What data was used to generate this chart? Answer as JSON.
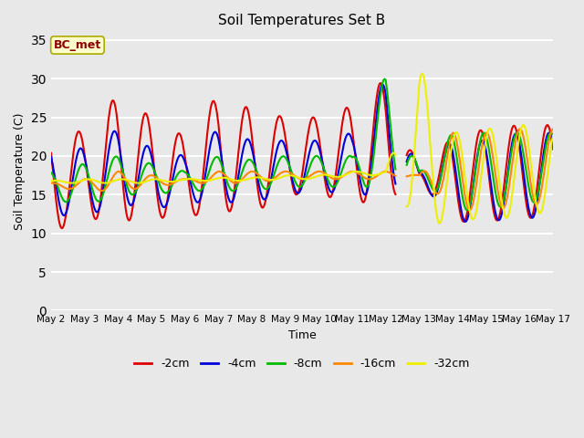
{
  "title": "Soil Temperatures Set B",
  "xlabel": "Time",
  "ylabel": "Soil Temperature (C)",
  "annotation": "BC_met",
  "ylim": [
    0,
    36
  ],
  "yticks": [
    0,
    5,
    10,
    15,
    20,
    25,
    30,
    35
  ],
  "x_tick_labels": [
    "May 2",
    "May 3",
    "May 4",
    "May 5",
    "May 6",
    "May 7",
    "May 8",
    "May 9",
    "May 10",
    "May 11",
    "May 12",
    "May 13",
    "May 14",
    "May 15",
    "May 16",
    "May 17"
  ],
  "colors": {
    "-2cm": "#dd0000",
    "-4cm": "#0000dd",
    "-8cm": "#00bb00",
    "-16cm": "#ff8800",
    "-32cm": "#eeee00"
  },
  "fig_bg": "#e8e8e8",
  "plot_bg": "#e8e8e8",
  "grid_color": "#ffffff"
}
